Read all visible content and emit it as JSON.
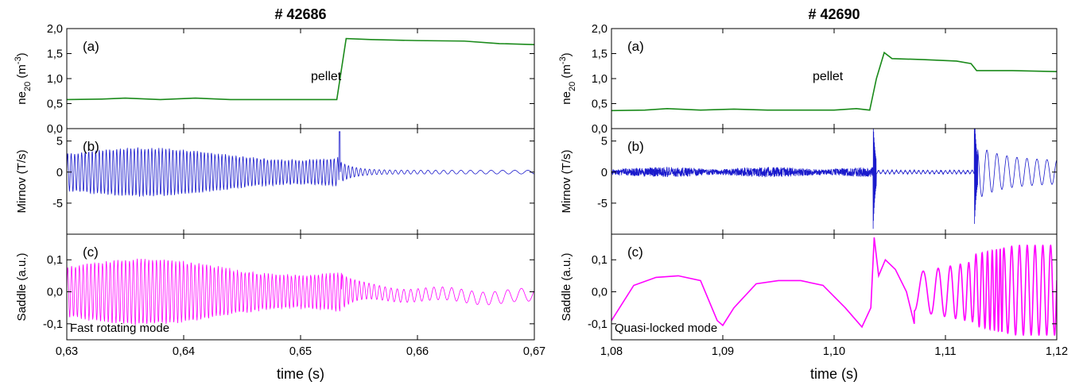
{
  "chart_data": [
    {
      "type": "line",
      "title": "# 42686",
      "xlabel": "time (s)",
      "xlim": [
        0.63,
        0.67
      ],
      "xticks": [
        "0,63",
        "0,64",
        "0,65",
        "0,66",
        "0,67"
      ],
      "panels": [
        {
          "label": "(a)",
          "ylabel": "ne20 (m-3)",
          "ylim": [
            0.0,
            2.0
          ],
          "yticks": [
            "0,0",
            "0,5",
            "1,0",
            "1,5",
            "2,0"
          ],
          "color": "#1a8a1a",
          "annotation": "pellet",
          "x": [
            0.63,
            0.633,
            0.635,
            0.638,
            0.641,
            0.644,
            0.647,
            0.65,
            0.6531,
            0.6539,
            0.656,
            0.66,
            0.664,
            0.667,
            0.67
          ],
          "y": [
            0.58,
            0.59,
            0.61,
            0.58,
            0.61,
            0.58,
            0.58,
            0.58,
            0.58,
            1.8,
            1.78,
            1.76,
            1.75,
            1.7,
            1.68
          ]
        },
        {
          "label": "(b)",
          "ylabel": "Mirnov (T/s)",
          "ylim": [
            -10,
            7
          ],
          "yticks": [
            "-5",
            "0",
            "5"
          ],
          "color": "#1a1acc",
          "signal": {
            "kind": "oscillation",
            "end_time": 0.6534,
            "amp_before": 3.8,
            "amp_after": 0.3,
            "period": 0.0003,
            "spike": 6.5
          }
        },
        {
          "label": "(c)",
          "ylabel": "Saddle (a.u.)",
          "ylim": [
            -0.15,
            0.18
          ],
          "yticks": [
            "-0,1",
            "0,0",
            "0,1"
          ],
          "color": "#ff00ff",
          "note": "Fast rotating mode",
          "signal": {
            "kind": "oscillation",
            "end_time": 0.6535,
            "amp_before": 0.1,
            "amp_after": 0.02,
            "period": 0.00033
          }
        }
      ]
    },
    {
      "type": "line",
      "title": "# 42690",
      "xlabel": "time (s)",
      "xlim": [
        1.08,
        1.12
      ],
      "xticks": [
        "1,08",
        "1,09",
        "1,10",
        "1,11",
        "1,12"
      ],
      "panels": [
        {
          "label": "(a)",
          "ylabel": "ne20 (m-3)",
          "ylim": [
            0.0,
            2.0
          ],
          "yticks": [
            "0,0",
            "0,5",
            "1,0",
            "1,5",
            "2,0"
          ],
          "color": "#1a8a1a",
          "annotation": "pellet",
          "x": [
            1.08,
            1.083,
            1.085,
            1.088,
            1.091,
            1.094,
            1.097,
            1.1,
            1.102,
            1.1032,
            1.1038,
            1.1045,
            1.1052,
            1.108,
            1.111,
            1.1123,
            1.1128,
            1.116,
            1.12
          ],
          "y": [
            0.36,
            0.37,
            0.4,
            0.37,
            0.39,
            0.37,
            0.37,
            0.37,
            0.4,
            0.37,
            1.0,
            1.52,
            1.4,
            1.38,
            1.35,
            1.3,
            1.16,
            1.16,
            1.14
          ]
        },
        {
          "label": "(b)",
          "ylabel": "Mirnov (T/s)",
          "ylim": [
            -10,
            7
          ],
          "yticks": [
            "-5",
            "0",
            "5"
          ],
          "color": "#1a1acc",
          "signal": {
            "kind": "bursts",
            "spikes": [
              1.1035,
              1.1126
            ],
            "amp_noise": 0.8
          }
        },
        {
          "label": "(c)",
          "ylabel": "Saddle (a.u.)",
          "ylim": [
            -0.15,
            0.18
          ],
          "yticks": [
            "-0,1",
            "0,0",
            "0,1"
          ],
          "color": "#ff00ff",
          "note": "Quasi-locked mode",
          "x": [
            1.08,
            1.082,
            1.084,
            1.086,
            1.088,
            1.0895,
            1.09,
            1.091,
            1.093,
            1.095,
            1.097,
            1.099,
            1.101,
            1.1025,
            1.1033,
            1.1036,
            1.104,
            1.1046,
            1.1055,
            1.1065,
            1.1072
          ],
          "y": [
            -0.09,
            0.02,
            0.045,
            0.05,
            0.035,
            -0.09,
            -0.105,
            -0.05,
            0.025,
            0.035,
            0.035,
            0.02,
            -0.05,
            -0.11,
            -0.05,
            0.17,
            0.05,
            0.1,
            0.07,
            0.0,
            -0.1
          ],
          "signal": {
            "kind": "growing-oscillation",
            "start_time": 1.1072,
            "amp_start": 0.07,
            "amp_end": 0.14,
            "period_start": 0.0017,
            "period_end": 0.0007
          }
        }
      ]
    }
  ]
}
